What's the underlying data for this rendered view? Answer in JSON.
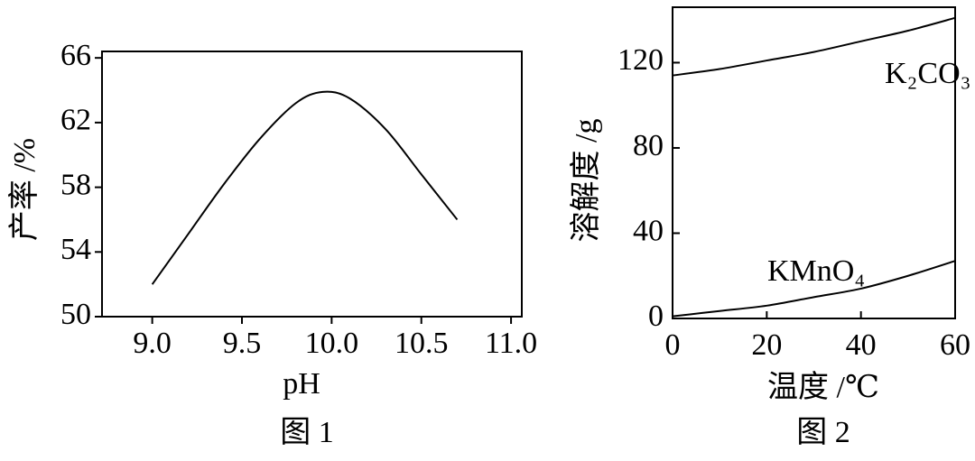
{
  "chart_data": [
    {
      "type": "line",
      "title": "图 1",
      "x_label": "pH",
      "y_label": "产率 /%",
      "x": [
        9.0,
        9.2,
        9.4,
        9.6,
        9.8,
        9.95,
        10.1,
        10.3,
        10.5,
        10.7
      ],
      "values": [
        52,
        55.1,
        58.2,
        61,
        63.2,
        63.9,
        63.5,
        61.6,
        58.8,
        56
      ],
      "color": "#000000",
      "xlim": [
        8.72,
        11.06
      ],
      "xticks": [
        {
          "value": 9,
          "label": "9.0"
        },
        9.5,
        {
          "value": 10,
          "label": "10.0"
        },
        10.5,
        {
          "value": 11,
          "label": "11.0"
        }
      ],
      "ylim": [
        50,
        66.4
      ],
      "yticks": [
        50,
        54,
        58,
        62,
        66
      ]
    },
    {
      "type": "line",
      "title": "图 2",
      "x_label": "温度 /℃",
      "y_label": "溶解度 /g",
      "x": [
        0,
        10,
        20,
        30,
        40,
        50,
        60
      ],
      "series": [
        {
          "name": "K₂CO₃",
          "color": "#000000",
          "values": [
            114,
            117,
            121,
            125,
            130,
            135,
            141
          ]
        },
        {
          "name": "KMnO₄",
          "color": "#000000",
          "values": [
            1,
            3.5,
            6,
            10,
            14,
            20,
            27
          ]
        }
      ],
      "xlim": [
        0,
        60
      ],
      "xticks": [
        0,
        20,
        40,
        60
      ],
      "ylim": [
        0,
        146
      ],
      "yticks": [
        0,
        40,
        80,
        120
      ]
    }
  ]
}
